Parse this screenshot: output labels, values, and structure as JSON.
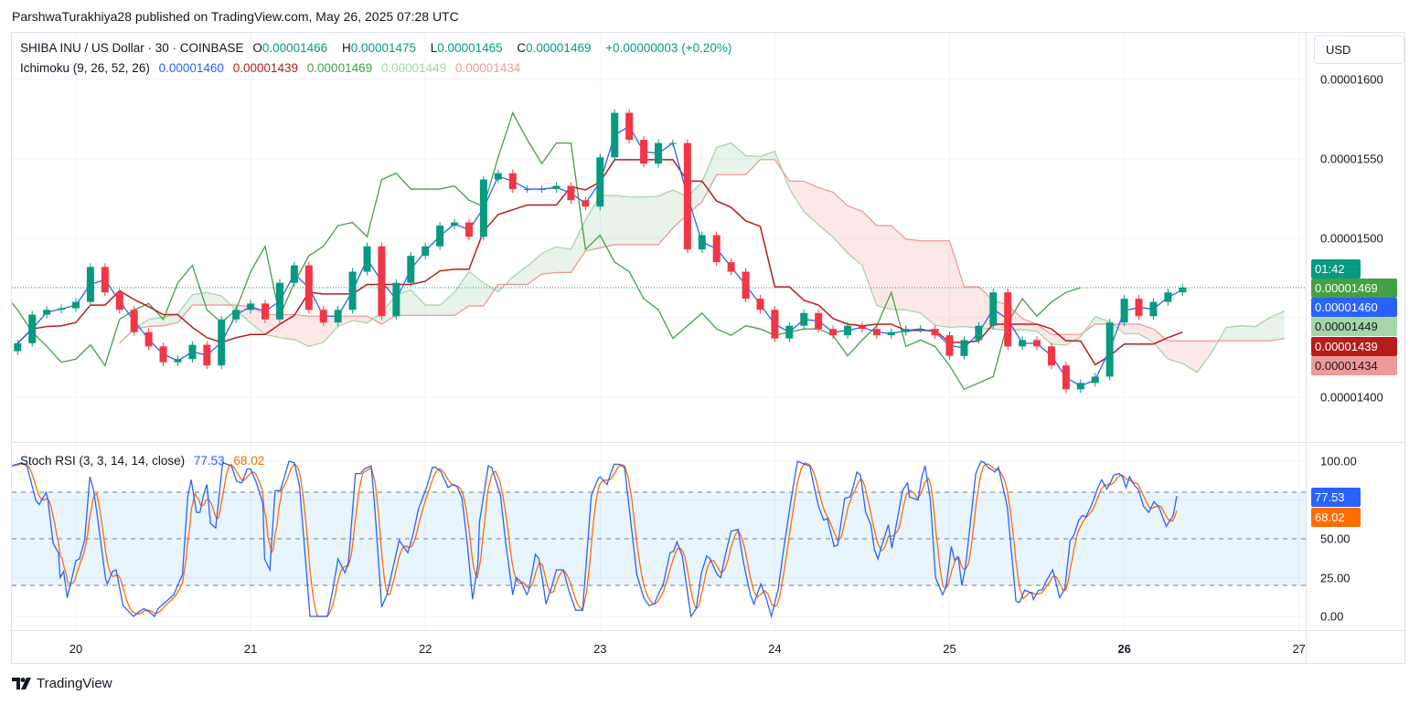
{
  "attribution": "ParshwaTurakhiya28 published on TradingView.com, May 26, 2025 07:28 UTC",
  "currency": "USD",
  "legend": {
    "symbol": "SHIBA INU / US Dollar · 30 · COINBASE",
    "o_label": "O",
    "o": "0.00001466",
    "h_label": "H",
    "h": "0.00001475",
    "l_label": "L",
    "l": "0.00001465",
    "c_label": "C",
    "c": "0.00001469",
    "change": "+0.00000003 (+0.20%)"
  },
  "ichimoku": {
    "label": "Ichimoku (9, 26, 52, 26)",
    "params": [
      9,
      26,
      52,
      26
    ],
    "conversion": "0.00001460",
    "base": "0.00001439",
    "lagging": "0.00001469",
    "lead1": "0.00001449",
    "lead2": "0.00001434"
  },
  "stoch": {
    "label": "Stoch RSI (3, 3, 14, 14, close)",
    "k": "77.53",
    "d": "68.02"
  },
  "price_axis": {
    "ticks": [
      "0.00001600",
      "0.00001550",
      "0.00001500",
      "0.00001400"
    ]
  },
  "price_labels": {
    "countdown": "01:42",
    "close": "0.00001469",
    "conversion": "0.00001460",
    "lead1": "0.00001449",
    "base": "0.00001439",
    "lead2": "0.00001434"
  },
  "stoch_axis": {
    "ticks": [
      "100.00",
      "50.00",
      "25.00",
      "0.00"
    ],
    "k_label": "77.53",
    "d_label": "68.02"
  },
  "time_axis": {
    "ticks": [
      "20",
      "21",
      "22",
      "23",
      "24",
      "25",
      "26",
      "27"
    ],
    "bold": "26"
  },
  "logo_text": "TradingView",
  "colors": {
    "up": "#089981",
    "down": "#f23645",
    "conversion": "#2962ff",
    "base": "#b71c1c",
    "lagging": "#43a047",
    "lead1": "#a5d6a7",
    "lead2": "#ef9a9a",
    "stoch_k": "#2962ff",
    "stoch_d": "#ff6d00",
    "countdown_bg": "#089981",
    "close_bg": "#43a047"
  },
  "chart_data": [
    {
      "type": "candlestick",
      "title": "SHIBA INU / US Dollar",
      "start": "2025-05-19 16:00",
      "interval_hours": 2,
      "ylim": [
        1.37e-05,
        1.62e-05
      ],
      "y_grid": [
        1.4e-05,
        1.45e-05,
        1.5e-05,
        1.55e-05,
        1.6e-05
      ],
      "x_ticks_day": [
        20,
        21,
        22,
        23,
        24,
        25,
        26,
        27
      ],
      "close": [
        1.434e-05,
        1.452e-05,
        1.455e-05,
        1.456e-05,
        1.46e-05,
        1.482e-05,
        1.466e-05,
        1.455e-05,
        1.441e-05,
        1.432e-05,
        1.422e-05,
        1.424e-05,
        1.433e-05,
        1.42e-05,
        1.449e-05,
        1.455e-05,
        1.459e-05,
        1.449e-05,
        1.472e-05,
        1.483e-05,
        1.455e-05,
        1.447e-05,
        1.455e-05,
        1.479e-05,
        1.495e-05,
        1.451e-05,
        1.472e-05,
        1.489e-05,
        1.495e-05,
        1.508e-05,
        1.51e-05,
        1.501e-05,
        1.537e-05,
        1.541e-05,
        1.531e-05,
        1.531e-05,
        1.531e-05,
        1.533e-05,
        1.524e-05,
        1.52e-05,
        1.551e-05,
        1.579e-05,
        1.562e-05,
        1.547e-05,
        1.56e-05,
        1.56e-05,
        1.493e-05,
        1.502e-05,
        1.485e-05,
        1.479e-05,
        1.462e-05,
        1.455e-05,
        1.437e-05,
        1.445e-05,
        1.453e-05,
        1.443e-05,
        1.439e-05,
        1.445e-05,
        1.443e-05,
        1.439e-05,
        1.441e-05,
        1.443e-05,
        1.443e-05,
        1.439e-05,
        1.426e-05,
        1.436e-05,
        1.445e-05,
        1.466e-05,
        1.432e-05,
        1.436e-05,
        1.432e-05,
        1.42e-05,
        1.405e-05,
        1.409e-05,
        1.413e-05,
        1.447e-05,
        1.462e-05,
        1.451e-05,
        1.46e-05,
        1.466e-05,
        1.469e-05
      ],
      "current_price": 1.469e-05
    },
    {
      "type": "line",
      "title": "Stoch RSI (3, 3, 14, 14, close)",
      "ylim": [
        0,
        100
      ],
      "y_ticks": [
        100,
        50,
        25,
        0
      ],
      "bands": [
        80,
        50,
        20
      ],
      "k_points_day_value": [
        [
          19.63,
          97
        ],
        [
          19.69,
          99
        ],
        [
          19.72,
          97
        ],
        [
          19.77,
          75
        ],
        [
          19.79,
          72
        ],
        [
          19.83,
          80
        ],
        [
          19.84,
          75
        ],
        [
          19.87,
          47
        ],
        [
          19.9,
          41
        ],
        [
          19.91,
          25
        ],
        [
          19.93,
          29
        ],
        [
          19.95,
          12
        ],
        [
          19.98,
          26
        ],
        [
          20.0,
          36
        ],
        [
          20.02,
          37
        ],
        [
          20.05,
          49
        ],
        [
          20.08,
          90
        ],
        [
          20.1,
          82
        ],
        [
          20.12,
          67
        ],
        [
          20.17,
          24
        ],
        [
          20.18,
          21
        ],
        [
          20.21,
          29
        ],
        [
          20.23,
          30
        ],
        [
          20.27,
          7
        ],
        [
          20.33,
          0
        ],
        [
          20.36,
          3
        ],
        [
          20.39,
          5
        ],
        [
          20.42,
          3
        ],
        [
          20.45,
          0
        ],
        [
          20.47,
          5
        ],
        [
          20.56,
          14
        ],
        [
          20.59,
          22
        ],
        [
          20.61,
          27
        ],
        [
          20.64,
          77
        ],
        [
          20.66,
          88
        ],
        [
          20.69,
          67
        ],
        [
          20.71,
          67
        ],
        [
          20.73,
          78
        ],
        [
          20.75,
          85
        ],
        [
          20.77,
          60
        ],
        [
          20.8,
          57
        ],
        [
          20.84,
          99
        ],
        [
          20.89,
          97
        ],
        [
          20.92,
          87
        ],
        [
          20.95,
          86
        ],
        [
          20.98,
          95
        ],
        [
          21.0,
          95
        ],
        [
          21.03,
          87
        ],
        [
          21.07,
          73
        ],
        [
          21.08,
          37
        ],
        [
          21.11,
          30
        ],
        [
          21.14,
          81
        ],
        [
          21.17,
          81
        ],
        [
          21.22,
          100
        ],
        [
          21.25,
          99
        ],
        [
          21.28,
          84
        ],
        [
          21.34,
          0
        ],
        [
          21.44,
          0
        ],
        [
          21.47,
          17
        ],
        [
          21.5,
          37
        ],
        [
          21.54,
          28
        ],
        [
          21.56,
          35
        ],
        [
          21.6,
          92
        ],
        [
          21.63,
          92
        ],
        [
          21.65,
          95
        ],
        [
          21.69,
          97
        ],
        [
          21.71,
          71
        ],
        [
          21.75,
          6
        ],
        [
          21.78,
          14
        ],
        [
          21.85,
          49
        ],
        [
          21.9,
          41
        ],
        [
          21.93,
          53
        ],
        [
          21.96,
          69
        ],
        [
          22.01,
          84
        ],
        [
          22.04,
          96
        ],
        [
          22.06,
          96
        ],
        [
          22.09,
          93
        ],
        [
          22.13,
          83
        ],
        [
          22.16,
          85
        ],
        [
          22.18,
          84
        ],
        [
          22.21,
          76
        ],
        [
          22.24,
          47
        ],
        [
          22.27,
          11
        ],
        [
          22.3,
          33
        ],
        [
          22.31,
          61
        ],
        [
          22.36,
          97
        ],
        [
          22.38,
          96
        ],
        [
          22.43,
          78
        ],
        [
          22.46,
          47
        ],
        [
          22.5,
          14
        ],
        [
          22.52,
          25
        ],
        [
          22.55,
          22
        ],
        [
          22.58,
          14
        ],
        [
          22.59,
          16
        ],
        [
          22.63,
          40
        ],
        [
          22.65,
          37
        ],
        [
          22.67,
          24
        ],
        [
          22.69,
          8
        ],
        [
          22.72,
          18
        ],
        [
          22.75,
          30
        ],
        [
          22.79,
          30
        ],
        [
          22.82,
          17
        ],
        [
          22.86,
          4
        ],
        [
          22.9,
          4
        ],
        [
          22.95,
          78
        ],
        [
          22.99,
          89
        ],
        [
          23.0,
          90
        ],
        [
          23.04,
          85
        ],
        [
          23.06,
          92
        ],
        [
          23.08,
          98
        ],
        [
          23.11,
          98
        ],
        [
          23.14,
          96
        ],
        [
          23.21,
          27
        ],
        [
          23.25,
          12
        ],
        [
          23.28,
          7
        ],
        [
          23.31,
          8
        ],
        [
          23.34,
          16
        ],
        [
          23.36,
          20
        ],
        [
          23.4,
          41
        ],
        [
          23.42,
          42
        ],
        [
          23.44,
          48
        ],
        [
          23.47,
          39
        ],
        [
          23.52,
          0
        ],
        [
          23.55,
          5
        ],
        [
          23.58,
          28
        ],
        [
          23.61,
          39
        ],
        [
          23.63,
          37
        ],
        [
          23.67,
          27
        ],
        [
          23.69,
          25
        ],
        [
          23.72,
          41
        ],
        [
          23.75,
          55
        ],
        [
          23.79,
          56
        ],
        [
          23.82,
          35
        ],
        [
          23.86,
          14
        ],
        [
          23.88,
          8
        ],
        [
          23.92,
          21
        ],
        [
          23.95,
          12
        ],
        [
          23.98,
          0
        ],
        [
          24.02,
          18
        ],
        [
          24.05,
          43
        ],
        [
          24.09,
          73
        ],
        [
          24.11,
          87
        ],
        [
          24.13,
          100
        ],
        [
          24.17,
          98
        ],
        [
          24.2,
          97
        ],
        [
          24.22,
          86
        ],
        [
          24.25,
          71
        ],
        [
          24.28,
          62
        ],
        [
          24.3,
          63
        ],
        [
          24.34,
          45
        ],
        [
          24.36,
          46
        ],
        [
          24.4,
          76
        ],
        [
          24.43,
          77
        ],
        [
          24.44,
          80
        ],
        [
          24.47,
          93
        ],
        [
          24.49,
          91
        ],
        [
          24.52,
          67
        ],
        [
          24.55,
          59
        ],
        [
          24.57,
          43
        ],
        [
          24.59,
          37
        ],
        [
          24.61,
          45
        ],
        [
          24.65,
          59
        ],
        [
          24.67,
          44
        ],
        [
          24.7,
          62
        ],
        [
          24.71,
          68
        ],
        [
          24.73,
          81
        ],
        [
          24.76,
          86
        ],
        [
          24.77,
          77
        ],
        [
          24.82,
          75
        ],
        [
          24.84,
          89
        ],
        [
          24.86,
          97
        ],
        [
          24.89,
          75
        ],
        [
          24.92,
          25
        ],
        [
          24.96,
          14
        ],
        [
          24.98,
          19
        ],
        [
          25.01,
          45
        ],
        [
          25.03,
          36
        ],
        [
          25.05,
          38
        ],
        [
          25.07,
          20
        ],
        [
          25.09,
          31
        ],
        [
          25.12,
          61
        ],
        [
          25.15,
          92
        ],
        [
          25.18,
          100
        ],
        [
          25.2,
          99
        ],
        [
          25.22,
          96
        ],
        [
          25.26,
          93
        ],
        [
          25.28,
          96
        ],
        [
          25.33,
          71
        ],
        [
          25.38,
          10
        ],
        [
          25.4,
          9
        ],
        [
          25.43,
          17
        ],
        [
          25.47,
          15
        ],
        [
          25.48,
          11
        ],
        [
          25.51,
          17
        ],
        [
          25.53,
          17
        ],
        [
          25.55,
          22
        ],
        [
          25.59,
          30
        ],
        [
          25.6,
          26
        ],
        [
          25.63,
          12
        ],
        [
          25.66,
          18
        ],
        [
          25.69,
          49
        ],
        [
          25.71,
          52
        ],
        [
          25.74,
          62
        ],
        [
          25.76,
          65
        ],
        [
          25.78,
          64
        ],
        [
          25.81,
          71
        ],
        [
          25.85,
          83
        ],
        [
          25.87,
          88
        ],
        [
          25.9,
          82
        ],
        [
          25.92,
          86
        ],
        [
          25.94,
          91
        ],
        [
          25.97,
          92
        ],
        [
          25.99,
          90
        ],
        [
          26.01,
          83
        ],
        [
          26.03,
          90
        ],
        [
          26.06,
          84
        ],
        [
          26.08,
          82
        ],
        [
          26.11,
          71
        ],
        [
          26.14,
          67
        ],
        [
          26.17,
          74
        ],
        [
          26.2,
          70
        ],
        [
          26.21,
          67
        ],
        [
          26.24,
          58
        ],
        [
          26.28,
          65
        ],
        [
          26.3,
          77.53
        ]
      ]
    }
  ]
}
